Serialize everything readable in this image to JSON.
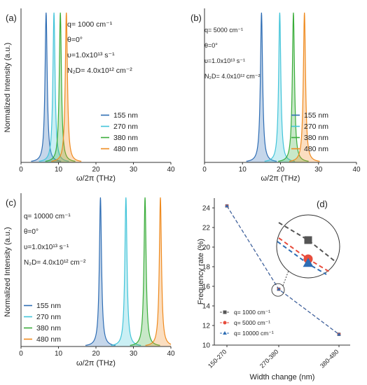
{
  "colors": {
    "c155": "#2e6db4",
    "c270": "#42c4d9",
    "c380": "#3aad3a",
    "c480": "#ef8a1e",
    "axis": "#333333"
  },
  "chart_data": [
    {
      "type": "line",
      "panel_label": "(a)",
      "params": [
        "q= 1000 cm⁻¹",
        "θ=0°",
        "υ=1.0x10¹³ s⁻¹",
        "N₂D= 4.0x10¹² cm⁻²"
      ],
      "xlabel": "ω/2π (THz)",
      "ylabel": "Normalized Intensity (a.u.)",
      "xlim": [
        0,
        40
      ],
      "xticks": [
        "0",
        "10",
        "20",
        "30",
        "40"
      ],
      "legend_position": "bottom-right",
      "series": [
        {
          "name": "155 nm",
          "peak": 6.7
        },
        {
          "name": "270 nm",
          "peak": 8.8
        },
        {
          "name": "380 nm",
          "peak": 10.5
        },
        {
          "name": "480 nm",
          "peak": 12.1
        }
      ]
    },
    {
      "type": "line",
      "panel_label": "(b)",
      "params": [
        "q= 5000 cm⁻¹",
        "θ=0°",
        "υ=1.0x10¹³ s⁻¹",
        "N₂D= 4.0x10¹² cm⁻²"
      ],
      "xlabel": "ω/2π (THz)",
      "ylabel": "",
      "xlim": [
        0,
        40
      ],
      "xticks": [
        "0",
        "10",
        "20",
        "30",
        "40"
      ],
      "legend_position": "bottom-right",
      "series": [
        {
          "name": "155 nm",
          "peak": 15.0
        },
        {
          "name": "270 nm",
          "peak": 19.8
        },
        {
          "name": "380 nm",
          "peak": 23.4
        },
        {
          "name": "480 nm",
          "peak": 26.3
        }
      ]
    },
    {
      "type": "line",
      "panel_label": "(c)",
      "params": [
        "q= 10000 cm⁻¹",
        "θ=0°",
        "υ=1.0x10¹³ s⁻¹",
        "N₂D= 4.0x10¹² cm⁻²"
      ],
      "xlabel": "ω/2π (THz)",
      "ylabel": "Normalized Intensity (a.u.)",
      "xlim": [
        0,
        40
      ],
      "xticks": [
        "0",
        "10",
        "20",
        "30",
        "40"
      ],
      "legend_position": "bottom-left",
      "series": [
        {
          "name": "155 nm",
          "peak": 21.2
        },
        {
          "name": "270 nm",
          "peak": 28.0
        },
        {
          "name": "380 nm",
          "peak": 33.1
        },
        {
          "name": "480 nm",
          "peak": 37.2
        }
      ]
    },
    {
      "type": "line",
      "panel_label": "(d)",
      "xlabel": "Width change (nm)",
      "ylabel": "Frequency rate (%)",
      "categories": [
        "150-270",
        "270-380",
        "380-480"
      ],
      "ylim": [
        10,
        25
      ],
      "yticks": [
        10,
        12,
        14,
        16,
        18,
        20,
        22,
        24
      ],
      "legend_position": "bottom-left",
      "series": [
        {
          "name": "q= 1000 cm⁻¹",
          "marker": "square",
          "line_color": "#555555",
          "values": [
            24.2,
            15.7,
            11.1
          ]
        },
        {
          "name": "q= 5000 cm⁻¹",
          "marker": "circle",
          "line_color": "#e74c3c",
          "values": [
            24.2,
            15.7,
            11.1
          ]
        },
        {
          "name": "q= 10000 cm⁻¹",
          "marker": "triangle",
          "line_color": "#2e6db4",
          "values": [
            24.2,
            15.7,
            11.1
          ]
        }
      ]
    }
  ]
}
